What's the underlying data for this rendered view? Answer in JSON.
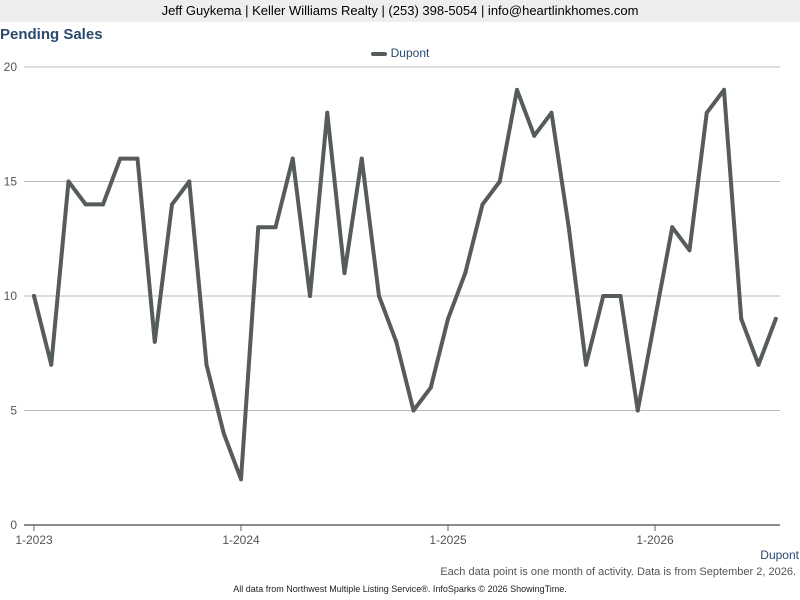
{
  "header": {
    "text": "Jeff Guykema | Keller Williams Realty | (253) 398-5054 | info@heartlinkhomes.com"
  },
  "chart_title": "Pending Sales",
  "legend": {
    "series_name": "Dupont"
  },
  "corner_label": "Dupont",
  "note": "Each data point is one month of activity. Data is from September 2, 2026.",
  "footer": "All data from Northwest Multiple Listing Service®. InfoSparks © 2026 ShowingTime.",
  "colors": {
    "line": "#555c5a",
    "title": "#2a4a6e",
    "grid": "#bbbbbb"
  },
  "chart_data": {
    "type": "line",
    "title": "Pending Sales",
    "xlabel": "",
    "ylabel": "",
    "ylim": [
      0,
      20
    ],
    "yticks": [
      0,
      5,
      10,
      15,
      20
    ],
    "xticks": [
      "1-2023",
      "1-2024",
      "1-2025",
      "1-2026"
    ],
    "grid": true,
    "legend_position": "top",
    "x": [
      "2023-01",
      "2023-02",
      "2023-03",
      "2023-04",
      "2023-05",
      "2023-06",
      "2023-07",
      "2023-08",
      "2023-09",
      "2023-10",
      "2023-11",
      "2023-12",
      "2024-01",
      "2024-02",
      "2024-03",
      "2024-04",
      "2024-05",
      "2024-06",
      "2024-07",
      "2024-08",
      "2024-09",
      "2024-10",
      "2024-11",
      "2024-12",
      "2025-01",
      "2025-02",
      "2025-03",
      "2025-04",
      "2025-05",
      "2025-06",
      "2025-07",
      "2025-08",
      "2025-09",
      "2025-10",
      "2025-11",
      "2025-12",
      "2026-01",
      "2026-02",
      "2026-03",
      "2026-04",
      "2026-05",
      "2026-06",
      "2026-07",
      "2026-08"
    ],
    "series": [
      {
        "name": "Dupont",
        "values": [
          10,
          7,
          15,
          14,
          14,
          16,
          16,
          8,
          14,
          15,
          7,
          4,
          2,
          13,
          13,
          16,
          10,
          18,
          11,
          16,
          10,
          8,
          5,
          6,
          9,
          11,
          14,
          15,
          19,
          17,
          18,
          13,
          7,
          10,
          10,
          5,
          9,
          13,
          12,
          18,
          19,
          9,
          7,
          9
        ]
      }
    ]
  }
}
